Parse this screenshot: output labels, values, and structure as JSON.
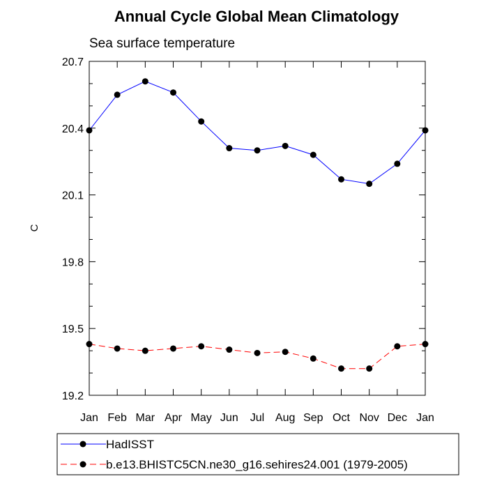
{
  "chart_data": {
    "type": "line",
    "title": "Annual Cycle Global Mean Climatology",
    "subtitle": "Sea surface temperature",
    "xlabel": "",
    "ylabel": "C",
    "categories": [
      "Jan",
      "Feb",
      "Mar",
      "Apr",
      "May",
      "Jun",
      "Jul",
      "Aug",
      "Sep",
      "Oct",
      "Nov",
      "Dec",
      "Jan"
    ],
    "ylim": [
      19.2,
      20.7
    ],
    "yticks": [
      "19.2",
      "19.5",
      "19.8",
      "20.1",
      "20.4",
      "20.7"
    ],
    "grid": false,
    "legend_position": "bottom",
    "series": [
      {
        "name": "HadISST",
        "color": "#0000ff",
        "line_style": "solid",
        "marker": "filled-circle",
        "values": [
          20.39,
          20.55,
          20.61,
          20.56,
          20.43,
          20.31,
          20.3,
          20.32,
          20.28,
          20.17,
          20.15,
          20.24,
          20.39
        ]
      },
      {
        "name": "b.e13.BHISTC5CN.ne30_g16.sehires24.001 (1979-2005)",
        "color": "#ff0000",
        "line_style": "dashed",
        "marker": "filled-circle",
        "values": [
          19.43,
          19.41,
          19.4,
          19.41,
          19.42,
          19.405,
          19.39,
          19.395,
          19.365,
          19.32,
          19.32,
          19.42,
          19.43
        ]
      }
    ]
  }
}
